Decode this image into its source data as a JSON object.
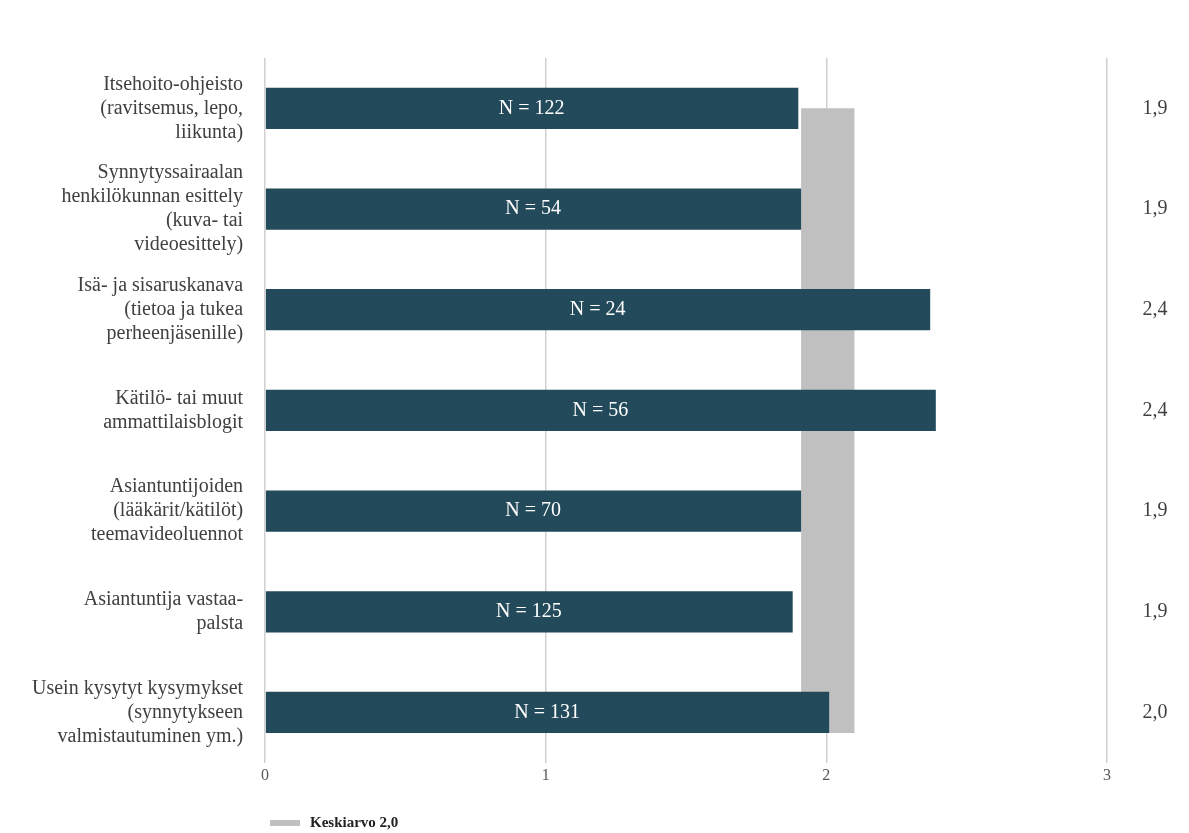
{
  "chart_data": {
    "type": "bar",
    "orientation": "horizontal",
    "categories": [
      "Itsehoito-ohjeisto (ravitsemus, lepo, liikunta)",
      "Synnytyssairaalan henkilökunnan esittely (kuva- tai videoesittely)",
      "Isä- ja sisaruskanava (tietoa ja tukea perheenjäsenille)",
      "Kätilö- tai muut ammattilaisblogit",
      "Asiantuntijoiden (lääkärit/kätilöt) teemavideoluennot",
      "Asiantuntija vastaa-palsta",
      "Usein kysytyt kysymykset (synnytykseen valmistautuminen ym.)"
    ],
    "values": [
      1.9,
      1.91,
      2.37,
      2.39,
      1.91,
      1.88,
      2.01
    ],
    "color": "#234a5a",
    "value_labels": [
      "1,9",
      "1,9",
      "2,4",
      "2,4",
      "1,9",
      "1,9",
      "2,0"
    ],
    "xlim": [
      0,
      3
    ],
    "xticks": [
      0,
      1,
      2,
      3
    ],
    "grid": "x",
    "bands": [
      {
        "axis": "x",
        "from": 1.91,
        "to": 2.1,
        "label": "Keskiarvo 2,0",
        "color": "#c0c0c0"
      }
    ],
    "legend": "bottom left",
    "annotations": [
      "N = 122",
      "N = 54",
      "N = 24",
      "N = 56",
      "N = 70",
      "N = 125",
      "N = 131"
    ]
  }
}
